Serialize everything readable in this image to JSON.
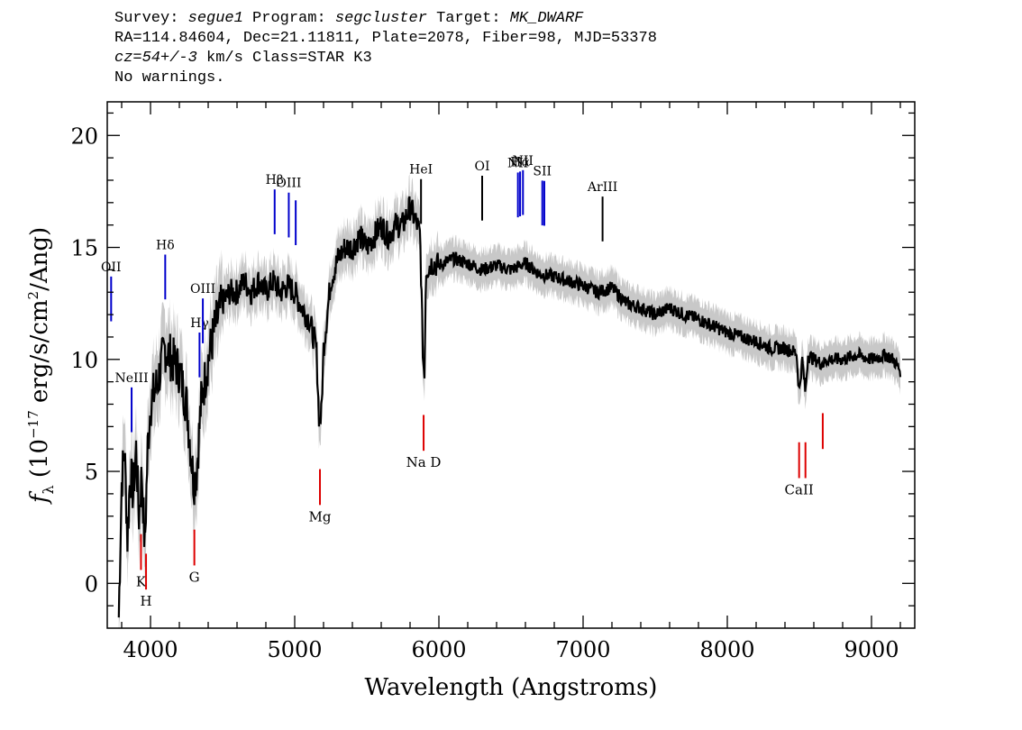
{
  "header": {
    "line1": {
      "survey_label": "Survey:",
      "survey": "segue1",
      "program_label": "Program:",
      "program": "segcluster",
      "target_label": "Target:",
      "target": "MK_DWARF"
    },
    "line2": "RA=114.84604, Dec=21.11811, Plate=2078, Fiber=98, MJD=53378",
    "line3": {
      "cz": "cz=54+/-3",
      "rest": "km/s Class=STAR K3"
    },
    "line4": "No warnings."
  },
  "chart_data": {
    "type": "line",
    "xlabel": "Wavelength (Angstroms)",
    "ylabel": "f_λ (10^-17 erg/s/cm^2/Ang)",
    "xlim": [
      3700,
      9300
    ],
    "ylim": [
      -2,
      21.5
    ],
    "x_ticks": [
      4000,
      5000,
      6000,
      7000,
      8000,
      9000
    ],
    "y_ticks": [
      0,
      5,
      10,
      15,
      20
    ],
    "colors": {
      "spectrum": "#000000",
      "error_band": "#c8c8c8",
      "emission": "#0000cc",
      "absorption": "#dd0000",
      "neutral": "#000000"
    },
    "continuum": {
      "x": [
        3780,
        3800,
        3820,
        3840,
        3860,
        3880,
        3900,
        3920,
        3940,
        3960,
        3980,
        4000,
        4050,
        4100,
        4150,
        4200,
        4250,
        4300,
        4320,
        4350,
        4400,
        4450,
        4500,
        4550,
        4600,
        4650,
        4700,
        4750,
        4800,
        4850,
        4900,
        4950,
        5000,
        5050,
        5100,
        5150,
        5170,
        5185,
        5200,
        5250,
        5300,
        5350,
        5400,
        5450,
        5500,
        5550,
        5600,
        5650,
        5700,
        5750,
        5800,
        5850,
        5870,
        5890,
        5900,
        5910,
        5950,
        6000,
        6100,
        6200,
        6300,
        6400,
        6500,
        6600,
        6700,
        6800,
        6900,
        7000,
        7100,
        7200,
        7300,
        7400,
        7500,
        7600,
        7700,
        7800,
        7900,
        8000,
        8100,
        8200,
        8300,
        8400,
        8480,
        8498,
        8520,
        8542,
        8560,
        8600,
        8662,
        8700,
        8800,
        8900,
        9000,
        9100,
        9150,
        9200
      ],
      "y": [
        -1.5,
        4.5,
        6,
        2,
        5,
        4,
        6,
        3,
        5,
        1.5,
        6,
        8,
        9,
        10.5,
        10,
        9.5,
        8,
        4.5,
        5,
        8,
        10,
        11.5,
        12.5,
        13,
        13,
        13.5,
        13,
        13.5,
        13,
        13.5,
        13,
        13.3,
        13,
        12.3,
        11.8,
        10.5,
        7.2,
        7.5,
        10.5,
        13.5,
        14.5,
        15,
        15,
        15.5,
        15,
        15.5,
        16,
        15.5,
        16,
        16,
        16.8,
        16,
        15.5,
        10,
        9.3,
        14,
        14.3,
        14.2,
        14.5,
        14.3,
        14,
        14.2,
        14,
        14.3,
        13.8,
        13.7,
        13.5,
        13.3,
        13,
        13.2,
        12.5,
        12.3,
        12,
        12.3,
        12,
        11.8,
        11.5,
        11.2,
        11,
        10.8,
        10.5,
        10.5,
        10.3,
        8.5,
        10,
        8.5,
        10.2,
        10,
        9.8,
        10,
        10,
        10.2,
        10,
        10.2,
        10,
        9.5
      ]
    },
    "line_labels": {
      "emission": [
        {
          "label": "OII",
          "x": 3727
        },
        {
          "label": "NeIII",
          "x": 3869
        },
        {
          "label": "Hδ",
          "x": 4102
        },
        {
          "label": "Hγ",
          "x": 4340
        },
        {
          "label": "OIII",
          "x": 4363
        },
        {
          "label": "Hβ",
          "x": 4861
        },
        {
          "label": "OIII",
          "x": 4959
        },
        {
          "label": "OIII",
          "x": 5007
        },
        {
          "label": "OI",
          "x": 6300
        },
        {
          "label": "NII",
          "x": 6548
        },
        {
          "label": "Hα",
          "x": 6563
        },
        {
          "label": "NII",
          "x": 6583
        },
        {
          "label": "SII",
          "x": 6717
        },
        {
          "label": "SII",
          "x": 6731
        },
        {
          "label": "ArIII",
          "x": 7135
        },
        {
          "label": "HeI",
          "x": 5876
        }
      ],
      "absorption": [
        {
          "label": "K",
          "x": 3934
        },
        {
          "label": "H",
          "x": 3969
        },
        {
          "label": "G",
          "x": 4304
        },
        {
          "label": "Mg",
          "x": 5175
        },
        {
          "label": "Na D",
          "x": 5894
        },
        {
          "label": "CaII",
          "x": 8498
        },
        {
          "label": "CaII",
          "x": 8542
        },
        {
          "label": "CaII",
          "x": 8662
        }
      ]
    }
  }
}
